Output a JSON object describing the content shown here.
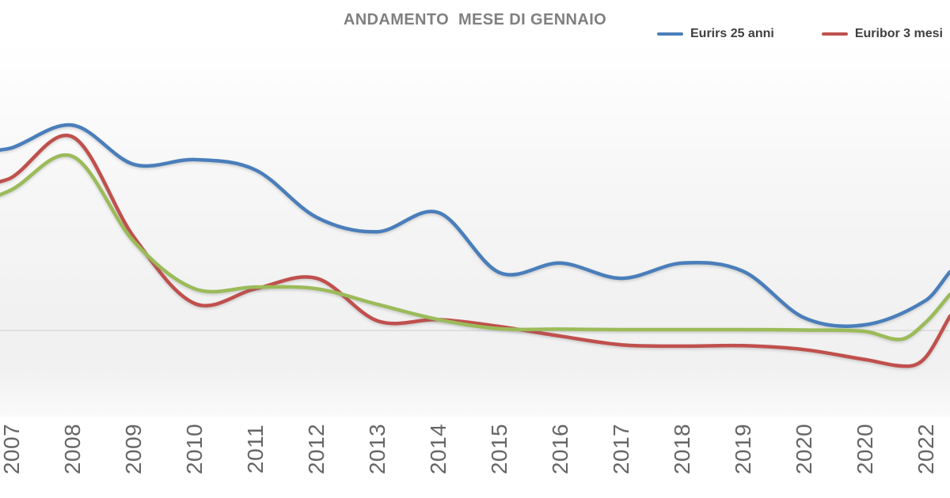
{
  "title": "ANDAMENTO  MESE DI GENNAIO",
  "legend": {
    "position": "top-right, second label clipped by right edge of image",
    "items": [
      {
        "label": "Eurirs 25 anni",
        "color": "#4a7ebb"
      },
      {
        "label": "Euribor 3 mesi",
        "color": "#c0504d"
      }
    ]
  },
  "x_axis": {
    "labels": [
      "2007",
      "2008",
      "2009",
      "2010",
      "2011",
      "2012",
      "2013",
      "2014",
      "2015",
      "2016",
      "2017",
      "2018",
      "2019",
      "2020",
      "2020",
      "2022"
    ],
    "label_color": "#666666",
    "label_rotation_deg": -90
  },
  "chart_data": {
    "type": "line",
    "smooth": true,
    "grid": "single horizontal zero gridline",
    "gridline_color": "#d9d9d9",
    "title": "ANDAMENTO  MESE DI GENNAIO",
    "categories": [
      "2007",
      "2008",
      "2009",
      "2010",
      "2011",
      "2012",
      "2013",
      "2014",
      "2015",
      "2016",
      "2017",
      "2018",
      "2019",
      "2020",
      "2020",
      "2022"
    ],
    "y_axis": {
      "visible": false,
      "unit": "percent (implied, no labels shown)",
      "range": [
        -1.98,
        6.6
      ]
    },
    "series": [
      {
        "name": "Eurirs 25 anni",
        "color": "#4a7ebb",
        "legend_visible": true,
        "edge_left_value": 4.15,
        "values": [
          4.2,
          4.72,
          3.82,
          3.93,
          3.69,
          2.6,
          2.27,
          2.71,
          1.33,
          1.55,
          1.2,
          1.55,
          1.36,
          0.29,
          0.13,
          0.7
        ],
        "extra_points": [],
        "edge_right_value": 1.35
      },
      {
        "name": "Euribor 3 mesi",
        "color": "#c0504d",
        "legend_visible": true,
        "edge_left_value": 3.42,
        "values": [
          3.52,
          4.45,
          2.15,
          0.62,
          0.96,
          1.2,
          0.22,
          0.25,
          0.09,
          -0.13,
          -0.33,
          -0.36,
          -0.35,
          -0.44,
          -0.67,
          -0.6
        ],
        "extra_points": [
          {
            "x_index": 14.72,
            "value": -0.82
          }
        ],
        "edge_right_value": 0.33
      },
      {
        "name": "",
        "color": "#9bbb59",
        "legend_visible": false,
        "edge_left_value": 3.12,
        "values": [
          3.24,
          4.0,
          2.05,
          0.96,
          1.0,
          0.96,
          0.6,
          0.25,
          0.04,
          0.03,
          0.02,
          0.02,
          0.02,
          0.01,
          -0.02,
          0.2
        ],
        "extra_points": [
          {
            "x_index": 14.6,
            "value": -0.2
          }
        ],
        "edge_right_value": 0.83
      }
    ]
  }
}
